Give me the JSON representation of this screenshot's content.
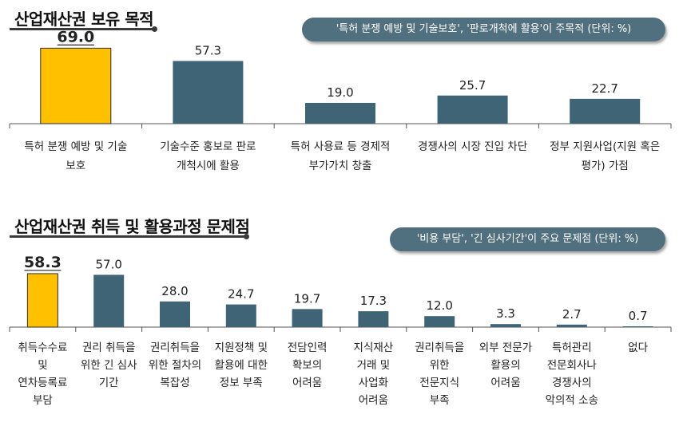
{
  "sections": [
    {
      "title": "산업재산권 보유 목적",
      "callout": "'특허 분쟁 예방 및 기술보호', '판로개척에 활용'이 주목적 (단위: %)"
    },
    {
      "title": "산업재산권 취득 및 활용과정 문제점",
      "callout": "'비용 부담', '긴 심사기간'이 주요 문제점 (단위: %)"
    }
  ],
  "colors": {
    "highlight": "#FFC000",
    "bar": "#3F6475",
    "pill": "#50707F",
    "axis": "#555555"
  },
  "chart_data": [
    {
      "type": "bar",
      "categories": [
        [
          "특허 분쟁 예방 및 기술",
          "보호"
        ],
        [
          "기술수준 홍보로 판로",
          "개척시에 활용"
        ],
        [
          "특허 사용료 등 경제적",
          "부가가치 창출"
        ],
        [
          "경쟁사의 시장 진입 차단"
        ],
        [
          "정부 지원사업(지원 혹은",
          "평가) 가점"
        ]
      ],
      "values": [
        69.0,
        57.3,
        19.0,
        25.7,
        22.7
      ],
      "value_labels": [
        "69.0",
        "57.3",
        "19.0",
        "25.7",
        "22.7"
      ],
      "highlight_index": 0,
      "ylim": [
        0,
        70
      ]
    },
    {
      "type": "bar",
      "categories": [
        [
          "취득수수료",
          "및",
          "연차등록료",
          "부담"
        ],
        [
          "권리 취득을",
          "위한 긴 심사",
          "기간"
        ],
        [
          "권리취득을",
          "위한 절차의",
          "복잡성"
        ],
        [
          "지원정책 및",
          "활용에 대한",
          "정보 부족"
        ],
        [
          "전담인력",
          "확보의",
          "어려움"
        ],
        [
          "지식재산",
          "거래 및",
          "사업화",
          "어려움"
        ],
        [
          "권리취득을",
          "위한",
          "전문지식",
          "부족"
        ],
        [
          "외부 전문가",
          "활용의",
          "어려움"
        ],
        [
          "특허관리",
          "전문회사나",
          "경쟁사의",
          "악의적 소송"
        ],
        [
          "없다"
        ]
      ],
      "values": [
        58.3,
        57.0,
        28.0,
        24.7,
        19.7,
        17.3,
        12.0,
        3.3,
        2.7,
        0.7
      ],
      "value_labels": [
        "58.3",
        "57.0",
        "28.0",
        "24.7",
        "19.7",
        "17.3",
        "12.0",
        "3.3",
        "2.7",
        "0.7"
      ],
      "highlight_index": 0,
      "ylim": [
        0,
        60
      ]
    }
  ]
}
